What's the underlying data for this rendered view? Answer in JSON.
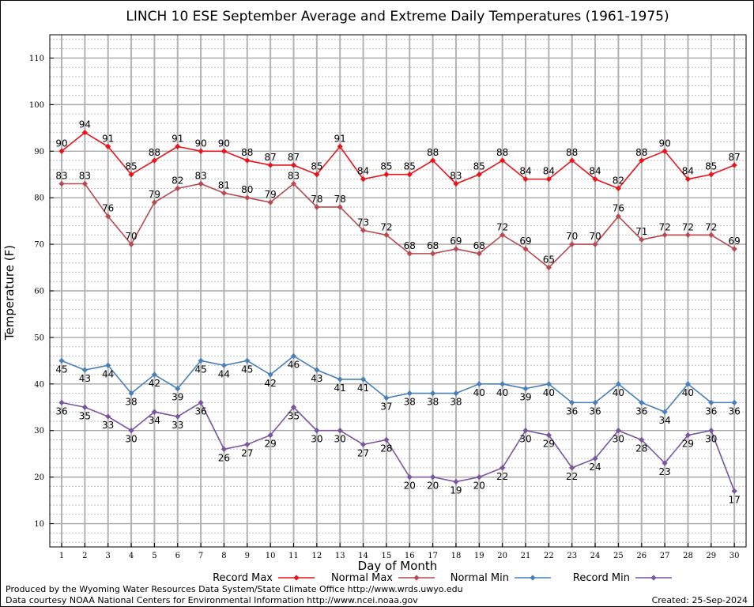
{
  "chart_data": {
    "type": "line",
    "title": "LINCH 10 ESE September Average and Extreme Daily Temperatures (1961-1975)",
    "xlabel": "Day of Month",
    "ylabel": "Temperature (F)",
    "ylim": [
      5,
      115
    ],
    "yticks": [
      10,
      20,
      30,
      40,
      50,
      60,
      70,
      80,
      90,
      100,
      110
    ],
    "x": [
      1,
      2,
      3,
      4,
      5,
      6,
      7,
      8,
      9,
      10,
      11,
      12,
      13,
      14,
      15,
      16,
      17,
      18,
      19,
      20,
      21,
      22,
      23,
      24,
      25,
      26,
      27,
      28,
      29,
      30
    ],
    "grid": true,
    "legend_position": "bottom",
    "series": [
      {
        "name": "Record Max",
        "color": "#e8141c",
        "label_position": "above",
        "values": [
          90,
          94,
          91,
          85,
          88,
          91,
          90,
          90,
          88,
          87,
          87,
          85,
          91,
          84,
          85,
          85,
          88,
          83,
          85,
          88,
          84,
          84,
          88,
          84,
          82,
          88,
          90,
          84,
          85,
          87
        ]
      },
      {
        "name": "Normal Max",
        "color": "#b84a4f",
        "label_position": "above",
        "values": [
          83,
          83,
          76,
          70,
          79,
          82,
          83,
          81,
          80,
          79,
          83,
          78,
          78,
          73,
          72,
          68,
          68,
          69,
          68,
          72,
          69,
          65,
          70,
          70,
          76,
          71,
          72,
          72,
          72,
          69
        ]
      },
      {
        "name": "Normal Min",
        "color": "#4a80b8",
        "label_position": "below",
        "values": [
          45,
          43,
          44,
          38,
          42,
          39,
          45,
          44,
          45,
          42,
          46,
          43,
          41,
          41,
          37,
          38,
          38,
          38,
          40,
          40,
          39,
          40,
          36,
          36,
          40,
          36,
          34,
          40,
          36,
          36
        ]
      },
      {
        "name": "Record Min",
        "color": "#7a55a0",
        "label_position": "below",
        "values": [
          36,
          35,
          33,
          30,
          34,
          33,
          36,
          26,
          27,
          29,
          35,
          30,
          30,
          27,
          28,
          20,
          20,
          19,
          20,
          22,
          30,
          29,
          22,
          24,
          30,
          28,
          23,
          29,
          30,
          17
        ]
      }
    ]
  },
  "footer": {
    "line1": "Produced by the Wyoming Water Resources Data System/State Climate Office http://www.wrds.uwyo.edu",
    "line2": "Data courtesy NOAA National Centers for Environmental Information http://www.ncei.noaa.gov",
    "created": "Created:  25-Sep-2024"
  }
}
